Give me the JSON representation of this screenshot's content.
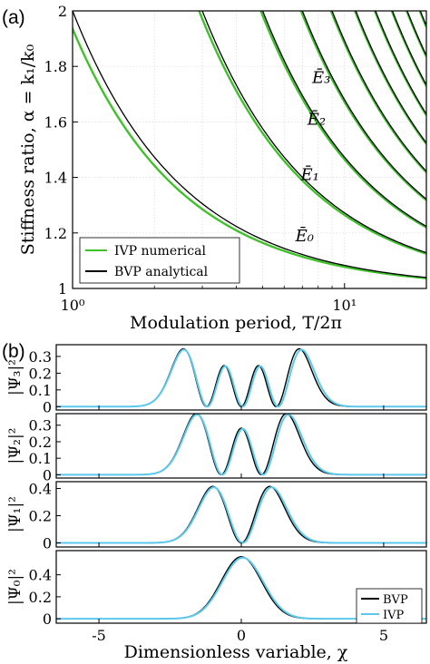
{
  "figure": {
    "panel_a_label": "(a)",
    "panel_b_label": "(b)"
  },
  "chart_data": [
    {
      "type": "line",
      "panel": "(a)",
      "xlabel": "Modulation period, T/2π",
      "ylabel": "Stiffness ratio, α = k₁/k₀",
      "x_scale": "log",
      "xlim": [
        1,
        20
      ],
      "ylim": [
        1,
        2
      ],
      "x_ticks": [
        1,
        10
      ],
      "x_tick_labels": [
        "10⁰",
        "10¹"
      ],
      "y_ticks": [
        1,
        1.2,
        1.4,
        1.6,
        1.8,
        2
      ],
      "y_tick_labels": [
        "1",
        "1.2",
        "1.4",
        "1.6",
        "1.8",
        "2"
      ],
      "grid": true,
      "legend": {
        "placement": "bottom-left",
        "entries": [
          {
            "label": "IVP numerical",
            "color": "#3fc12a"
          },
          {
            "label": "BVP analytical",
            "color": "#000000"
          }
        ]
      },
      "curve_labels": [
        "Ē₀",
        "Ē₁",
        "Ē₂",
        "Ē₃"
      ],
      "curve_label_points": [
        {
          "label": "Ē₀",
          "x": 6.6,
          "y": 1.17
        },
        {
          "label": "Ē₁",
          "x": 6.9,
          "y": 1.39
        },
        {
          "label": "Ē₂",
          "x": 7.3,
          "y": 1.59
        },
        {
          "label": "Ē₃",
          "x": 7.6,
          "y": 1.74
        }
      ],
      "family": [
        {
          "n": 0,
          "T_at_alpha_2_bvp": 1.0,
          "T_at_alpha_2_ivp": 0.94
        },
        {
          "n": 1,
          "T_at_alpha_2_bvp": 3.0,
          "T_at_alpha_2_ivp": 2.92
        },
        {
          "n": 2,
          "T_at_alpha_2_bvp": 5.0,
          "T_at_alpha_2_ivp": 4.92
        },
        {
          "n": 3,
          "T_at_alpha_2_bvp": 7.0,
          "T_at_alpha_2_ivp": 6.92
        },
        {
          "n": 4,
          "T_at_alpha_2_bvp": 9.0,
          "T_at_alpha_2_ivp": 8.92
        },
        {
          "n": 5,
          "T_at_alpha_2_bvp": 11.0,
          "T_at_alpha_2_ivp": 10.92
        },
        {
          "n": 6,
          "T_at_alpha_2_bvp": 13.0,
          "T_at_alpha_2_ivp": 12.92
        },
        {
          "n": 7,
          "T_at_alpha_2_bvp": 15.0,
          "T_at_alpha_2_ivp": 14.92
        },
        {
          "n": 8,
          "T_at_alpha_2_bvp": 17.0,
          "T_at_alpha_2_ivp": 16.92
        },
        {
          "n": 9,
          "T_at_alpha_2_bvp": 19.0,
          "T_at_alpha_2_ivp": 18.92
        }
      ]
    },
    {
      "type": "line",
      "panel": "(b)",
      "xlabel": "Dimensionless variable, χ",
      "xlim": [
        -6.5,
        6.5
      ],
      "x_ticks": [
        -5,
        0,
        5
      ],
      "x_tick_labels": [
        "-5",
        "0",
        "5"
      ],
      "legend": {
        "placement": "bottom-right",
        "entries": [
          {
            "label": "BVP",
            "color": "#000000"
          },
          {
            "label": "IVP",
            "color": "#5cc8ec"
          }
        ]
      },
      "subplots": [
        {
          "ylabel": "|Ψ₃|²",
          "n": 3,
          "ylim": [
            -0.02,
            0.37
          ],
          "y_ticks": [
            0,
            0.1,
            0.2,
            0.3
          ],
          "y_tick_labels": [
            "0",
            "0.1",
            "0.2",
            "0.3"
          ],
          "peak": 0.34
        },
        {
          "ylabel": "|Ψ₂|²",
          "n": 2,
          "ylim": [
            -0.02,
            0.37
          ],
          "y_ticks": [
            0,
            0.1,
            0.2,
            0.3
          ],
          "y_tick_labels": [
            "0",
            "0.1",
            "0.2",
            "0.3"
          ],
          "peak": 0.36
        },
        {
          "ylabel": "|Ψ₁|²",
          "n": 1,
          "ylim": [
            -0.03,
            0.45
          ],
          "y_ticks": [
            0,
            0.2,
            0.4
          ],
          "y_tick_labels": [
            "0",
            "0.2",
            "0.4"
          ],
          "peak": 0.41
        },
        {
          "ylabel": "|Ψ₀|²",
          "n": 0,
          "ylim": [
            -0.04,
            0.62
          ],
          "y_ticks": [
            0,
            0.2,
            0.4
          ],
          "y_tick_labels": [
            "0",
            "0.2",
            "0.4"
          ],
          "peak": 0.564
        }
      ]
    }
  ]
}
